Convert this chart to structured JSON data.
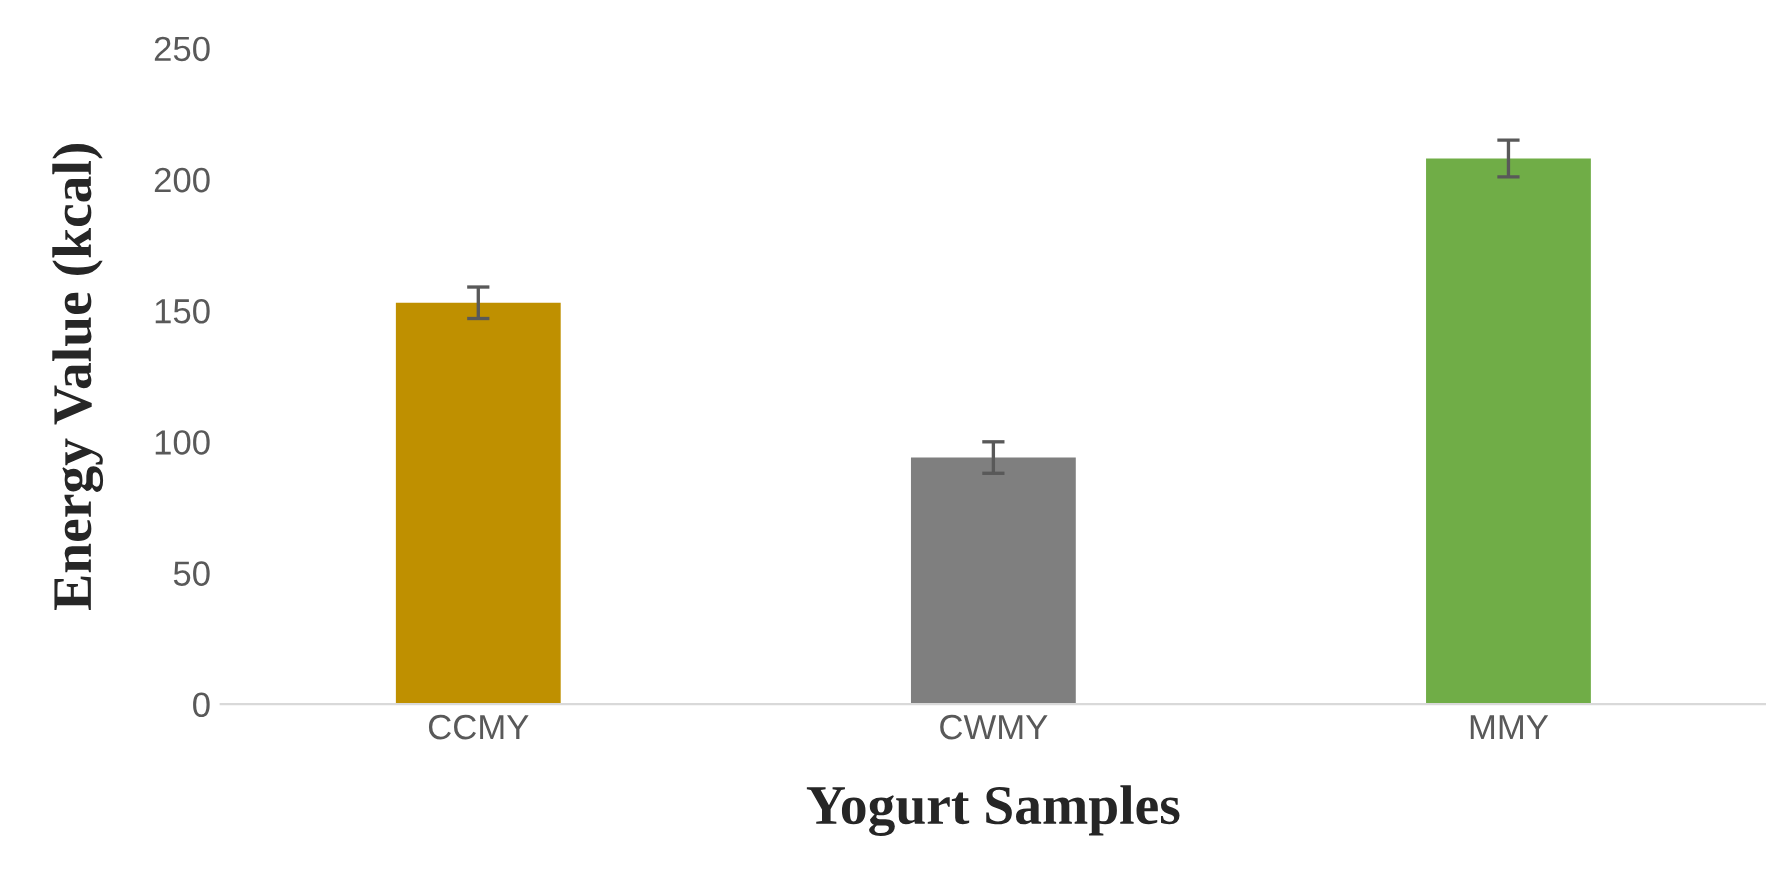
{
  "chart_data": {
    "type": "bar",
    "xlabel": "Yogurt Samples",
    "ylabel": "Energy Value (kcal)",
    "categories": [
      "CCMY",
      "CWMY",
      "MMY"
    ],
    "values": [
      153,
      94,
      208
    ],
    "colors": [
      "#bf9000",
      "#7f7f7f",
      "#70ad47"
    ],
    "errors": [
      6,
      6,
      7
    ],
    "ylim": [
      0,
      250
    ],
    "yticks": [
      0,
      50,
      100,
      150,
      200,
      250
    ],
    "grid": false,
    "legend": false
  }
}
